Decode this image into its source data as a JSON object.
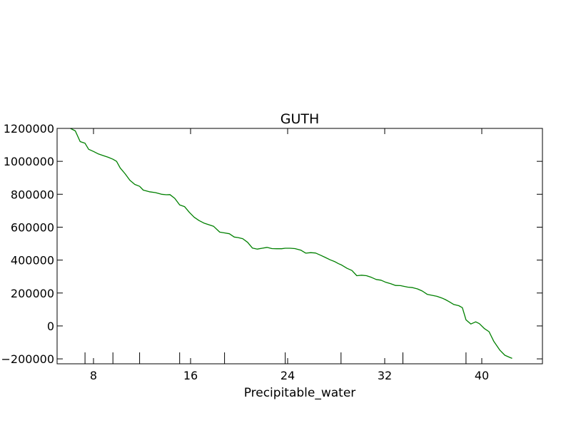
{
  "chart_data": {
    "type": "line",
    "title": "GUTH",
    "xlabel": "Precipitable_water",
    "ylabel": "",
    "xlim": [
      5,
      45
    ],
    "ylim": [
      -230000,
      1200000
    ],
    "xticks": [
      8,
      16,
      24,
      32,
      40
    ],
    "xtick_labels": [
      "8",
      "16",
      "24",
      "32",
      "40"
    ],
    "yticks": [
      -200000,
      0,
      200000,
      400000,
      600000,
      800000,
      1000000,
      1200000
    ],
    "ytick_labels": [
      "−200000",
      "0",
      "200000",
      "400000",
      "600000",
      "800000",
      "1000000",
      "1200000"
    ],
    "extra_xticks": [
      7.3,
      9.6,
      11.8,
      15.1,
      18.8,
      23.8,
      28.4,
      33.5,
      38.7
    ],
    "grid": false,
    "series": [
      {
        "color": "#008000",
        "x": [
          6.1,
          6.5,
          6.9,
          7.3,
          7.6,
          8.0,
          8.4,
          8.8,
          9.2,
          9.6,
          9.9,
          10.2,
          10.6,
          11.0,
          11.4,
          11.8,
          12.1,
          12.6,
          13.1,
          13.6,
          14.0,
          14.3,
          14.7,
          15.1,
          15.5,
          15.9,
          16.3,
          16.7,
          17.1,
          17.5,
          17.9,
          18.4,
          18.8,
          19.2,
          19.6,
          19.9,
          20.3,
          20.7,
          21.1,
          21.5,
          21.9,
          22.3,
          22.7,
          23.1,
          23.5,
          23.8,
          24.2,
          24.6,
          25.1,
          25.5,
          25.9,
          26.3,
          26.7,
          27.1,
          27.5,
          27.9,
          28.2,
          28.4,
          28.9,
          29.3,
          29.7,
          30.1,
          30.5,
          30.9,
          31.3,
          31.7,
          32.1,
          32.5,
          32.9,
          33.3,
          33.5,
          33.9,
          34.3,
          34.7,
          35.1,
          35.5,
          35.9,
          36.3,
          36.7,
          37.0,
          37.3,
          37.7,
          38.1,
          38.4,
          38.7,
          39.1,
          39.5,
          39.8,
          40.2,
          40.6,
          41.0,
          41.5,
          41.9,
          42.3,
          42.5
        ],
        "y": [
          1200000,
          1185000,
          1120000,
          1110000,
          1073000,
          1060000,
          1045000,
          1035000,
          1025000,
          1013000,
          1000000,
          960000,
          925000,
          885000,
          860000,
          848000,
          825000,
          815000,
          810000,
          800000,
          797000,
          798000,
          775000,
          735000,
          725000,
          690000,
          660000,
          640000,
          625000,
          615000,
          605000,
          570000,
          565000,
          560000,
          540000,
          537000,
          530000,
          508000,
          473000,
          467000,
          472000,
          477000,
          470000,
          469000,
          469000,
          472000,
          472000,
          470000,
          460000,
          442000,
          445000,
          443000,
          430000,
          416000,
          402000,
          390000,
          378000,
          372000,
          350000,
          337000,
          305000,
          308000,
          305000,
          295000,
          282000,
          278000,
          265000,
          256000,
          246000,
          245000,
          242000,
          236000,
          233000,
          225000,
          212000,
          192000,
          186000,
          180000,
          170000,
          160000,
          148000,
          130000,
          123000,
          111000,
          37000,
          12000,
          25000,
          14000,
          -15000,
          -35000,
          -95000,
          -148000,
          -178000,
          -191000,
          -197000
        ]
      }
    ]
  }
}
